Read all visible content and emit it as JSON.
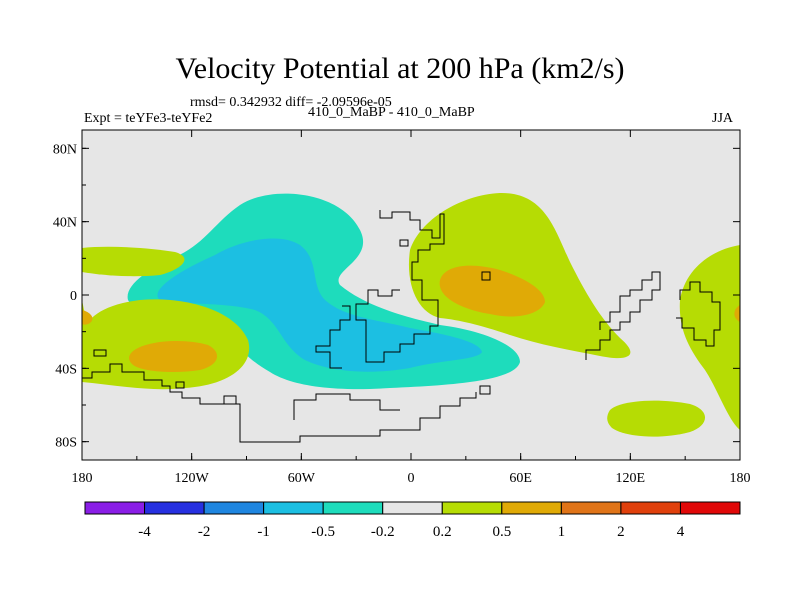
{
  "chart_data": {
    "type": "heatmap",
    "subtype": "filled-contour map",
    "title": "Velocity Potential at 200 hPa (km2/s)",
    "stats": "rmsd= 0.342932 diff= -2.09596e-05",
    "left_label": "Expt = teYFe3-teYFe2",
    "center_label": "410_0_MaBP - 410_0_MaBP",
    "right_label": "JJA",
    "x_axis": {
      "range": [
        -180,
        180
      ],
      "ticks": [
        "180",
        "120W",
        "60W",
        "0",
        "60E",
        "120E",
        "180"
      ]
    },
    "y_axis": {
      "range": [
        -90,
        90
      ],
      "ticks": [
        "80N",
        "40N",
        "0",
        "40S",
        "80S"
      ]
    },
    "contour_levels": [
      "-4",
      "-2",
      "-1",
      "-0.5",
      "-0.2",
      "0.2",
      "0.5",
      "1",
      "2",
      "4"
    ],
    "colors": [
      "#8a1ee6",
      "#2630e0",
      "#1f86e0",
      "#1cbfe2",
      "#1edcbc",
      "#e6e6e6",
      "#b6dc04",
      "#e0aa06",
      "#e07418",
      "#e0400c",
      "#e00808"
    ],
    "background": "#e6e6e6",
    "regions": [
      {
        "name": "negative-central-pacific",
        "level_range": "-0.5 to -0.2",
        "color": "#1edcbc"
      },
      {
        "name": "negative-core-pacific",
        "level_range": "-1 to -0.5",
        "color": "#1cbfe2"
      },
      {
        "name": "positive-asia-africa",
        "level_range": "0.2 to 0.5",
        "color": "#b6dc04"
      },
      {
        "name": "positive-arabia-core",
        "level_range": "0.5 to 1",
        "color": "#e0aa06"
      },
      {
        "name": "positive-southwest-pacific",
        "level_range": "0.2 to 0.5",
        "color": "#b6dc04"
      },
      {
        "name": "positive-southwest-pacific-core",
        "level_range": "0.5 to 1",
        "color": "#e0aa06"
      },
      {
        "name": "positive-western-margin",
        "level_range": "0.2 to 0.5",
        "color": "#b6dc04"
      },
      {
        "name": "positive-eastern-margin",
        "level_range": "0.2 to 0.5",
        "color": "#b6dc04"
      },
      {
        "name": "positive-southern-ocean",
        "level_range": "0.2 to 0.5",
        "color": "#b6dc04"
      }
    ]
  }
}
